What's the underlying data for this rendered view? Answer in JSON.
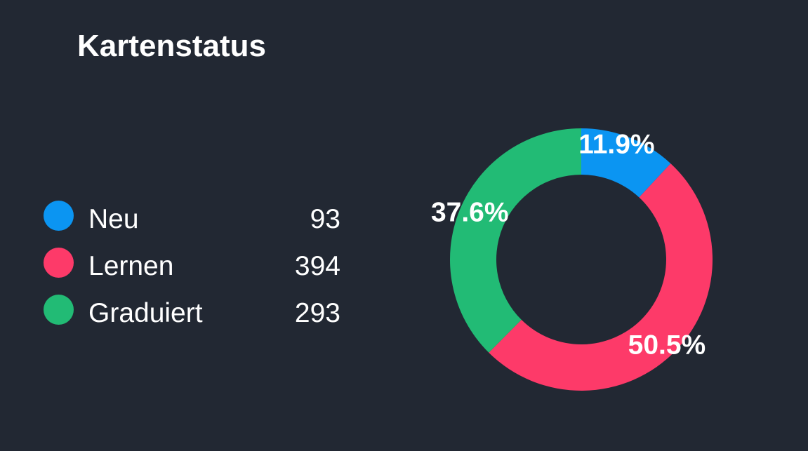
{
  "chart_data": {
    "type": "pie",
    "title": "Kartenstatus",
    "categories": [
      "Neu",
      "Lernen",
      "Graduiert"
    ],
    "values": [
      93,
      394,
      293
    ],
    "percent_labels": [
      "11.9%",
      "50.5%",
      "37.6%"
    ],
    "colors": [
      "#0b95f2",
      "#fd3a69",
      "#22bb75"
    ],
    "legend_position": "left",
    "donut": true
  },
  "legend": [
    {
      "label": "Neu",
      "value": "93",
      "color": "#0b95f2"
    },
    {
      "label": "Lernen",
      "value": "394",
      "color": "#fd3a69"
    },
    {
      "label": "Graduiert",
      "value": "293",
      "color": "#22bb75"
    }
  ]
}
